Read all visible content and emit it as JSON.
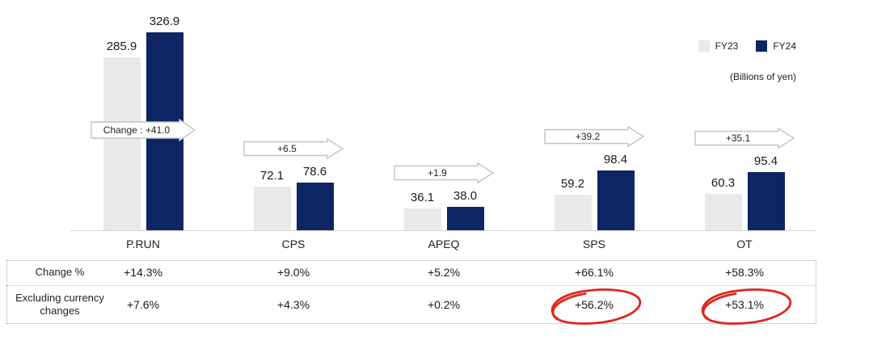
{
  "legend": {
    "fy23_label": "FY23",
    "fy24_label": "FY24",
    "unit_label": "(Billions of yen)"
  },
  "colors": {
    "fy23": "#e9e9e9",
    "fy24": "#0e2563",
    "axis": "#d5d5d5",
    "arrow_outline": "#c4c4c4",
    "highlight": "#e0261c"
  },
  "chart_data": {
    "type": "bar",
    "unit": "Billions of yen",
    "categories": [
      "P.RUN",
      "CPS",
      "APEQ",
      "SPS",
      "OT"
    ],
    "series": [
      {
        "name": "FY23",
        "values": [
          285.9,
          72.1,
          36.1,
          59.2,
          60.3
        ]
      },
      {
        "name": "FY24",
        "values": [
          326.9,
          78.6,
          38.0,
          98.4,
          95.4
        ]
      }
    ],
    "change_labels": [
      "Change : +41.0",
      "+6.5",
      "+1.9",
      "+39.2",
      "+35.1"
    ],
    "legend_entries": [
      "FY23",
      "FY24"
    ],
    "legend_position": "top-right",
    "ylim": [
      0,
      340
    ],
    "grid": false
  },
  "table": {
    "rows": [
      {
        "label": "Change %",
        "values": [
          "+14.3%",
          "+9.0%",
          "+5.2%",
          "+66.1%",
          "+58.3%"
        ],
        "highlighted": [
          false,
          false,
          false,
          false,
          false
        ]
      },
      {
        "label": "Excluding currency changes",
        "values": [
          "+7.6%",
          "+4.3%",
          "+0.2%",
          "+56.2%",
          "+53.1%"
        ],
        "highlighted": [
          false,
          false,
          false,
          true,
          true
        ]
      }
    ]
  }
}
